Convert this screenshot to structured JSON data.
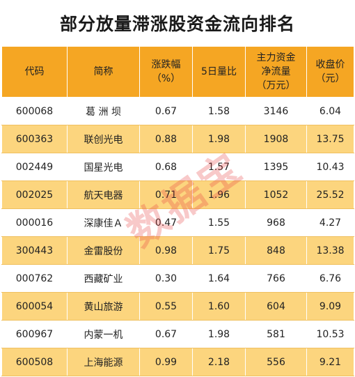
{
  "title": "部分放量滞涨股资金流向排名",
  "headers": [
    {
      "line1": "代码",
      "line2": "",
      "line3": ""
    },
    {
      "line1": "简称",
      "line2": "",
      "line3": ""
    },
    {
      "line1": "涨跌幅",
      "line2": "（%）",
      "line3": ""
    },
    {
      "line1": "5日量比",
      "line2": "",
      "line3": ""
    },
    {
      "line1": "主力资金",
      "line2": "净流量",
      "line3": "（万元）"
    },
    {
      "line1": "收盘价",
      "line2": "（元）",
      "line3": ""
    }
  ],
  "rows": [
    {
      "code": "600068",
      "name": "葛 洲 坝",
      "change": "0.67",
      "ratio": "1.58",
      "flow": "3146",
      "close": "6.04"
    },
    {
      "code": "600363",
      "name": "联创光电",
      "change": "0.88",
      "ratio": "1.98",
      "flow": "1908",
      "close": "13.75"
    },
    {
      "code": "002449",
      "name": "国星光电",
      "change": "0.68",
      "ratio": "1.57",
      "flow": "1395",
      "close": "10.43"
    },
    {
      "code": "002025",
      "name": "航天电器",
      "change": "0.71",
      "ratio": "1.96",
      "flow": "1052",
      "close": "25.52"
    },
    {
      "code": "000016",
      "name": "深康佳Ａ",
      "change": "0.47",
      "ratio": "1.55",
      "flow": "968",
      "close": "4.27"
    },
    {
      "code": "300443",
      "name": "金雷股份",
      "change": "0.98",
      "ratio": "1.75",
      "flow": "848",
      "close": "13.38"
    },
    {
      "code": "000762",
      "name": "西藏矿业",
      "change": "0.30",
      "ratio": "1.64",
      "flow": "766",
      "close": "6.76"
    },
    {
      "code": "600054",
      "name": "黄山旅游",
      "change": "0.55",
      "ratio": "1.60",
      "flow": "604",
      "close": "9.09"
    },
    {
      "code": "600967",
      "name": "内蒙一机",
      "change": "0.67",
      "ratio": "1.98",
      "flow": "581",
      "close": "10.53"
    },
    {
      "code": "600508",
      "name": "上海能源",
      "change": "0.99",
      "ratio": "2.18",
      "flow": "556",
      "close": "9.21"
    }
  ],
  "watermark": "数据宝",
  "colors": {
    "header_bg": "#f5a623",
    "stripe_bg": "#fcd57e",
    "watermark": "#e63c3c"
  }
}
